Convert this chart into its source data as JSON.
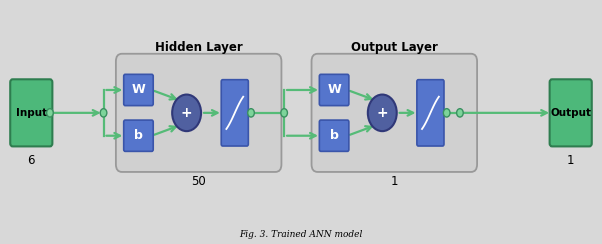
{
  "bg_color": "#d8d8d8",
  "caption": "Fig. 3. Trained ANN model",
  "input_label": "Input",
  "output_label": "Output",
  "input_num": "6",
  "output_num": "1",
  "hidden_layer_label": "Hidden Layer",
  "output_layer_label": "Output Layer",
  "hidden_layer_num": "50",
  "output_layer_num": "1",
  "green_color": "#4db87a",
  "green_edge": "#2e7d4f",
  "blue_color": "#5575cc",
  "blue_edge": "#3a55aa",
  "circle_color": "#5060a0",
  "circle_edge": "#303878",
  "dot_color": "#7dd49a",
  "dot_edge": "#3a9060",
  "arrow_color": "#55bb77",
  "rounded_bg": "#d0d0d0",
  "rounded_edge": "#999999",
  "xlim": [
    0,
    10
  ],
  "ylim": [
    0,
    3.2
  ]
}
